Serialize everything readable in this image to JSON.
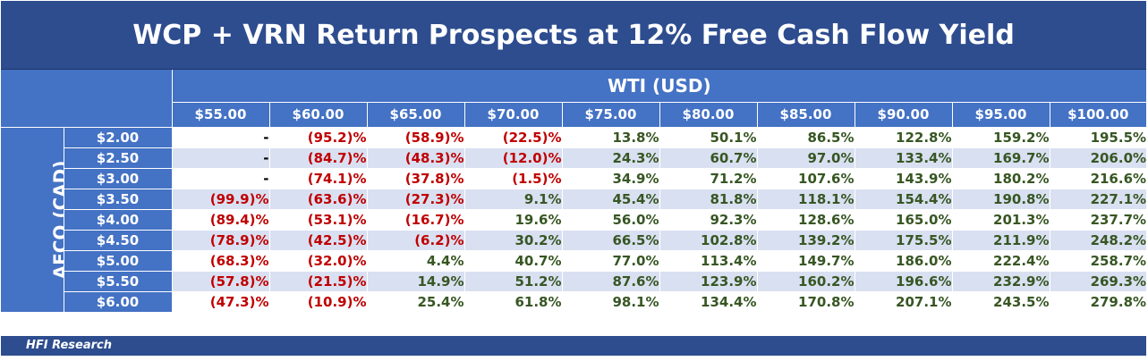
{
  "title": "WCP + VRN Return Prospects at 12% Free Cash Flow Yield",
  "footer_text": "HFI Research",
  "colors": {
    "header_bg": "#4472c4",
    "title_bg": "#2e4d8f",
    "negative": "#c00000",
    "positive": "#375623",
    "band": "#d9e0f1"
  },
  "chart_data": {
    "type": "table",
    "title": "WCP + VRN Return Prospects at 12% Free Cash Flow Yield",
    "col_axis_label": "WTI (USD)",
    "row_axis_label": "AECO (CAD)",
    "columns": [
      "$55.00",
      "$60.00",
      "$65.00",
      "$70.00",
      "$75.00",
      "$80.00",
      "$85.00",
      "$90.00",
      "$95.00",
      "$100.00"
    ],
    "rows": [
      {
        "label": "$2.00",
        "cells": [
          "-",
          "(95.2)%",
          "(58.9)%",
          "(22.5)%",
          "13.8%",
          "50.1%",
          "86.5%",
          "122.8%",
          "159.2%",
          "195.5%"
        ]
      },
      {
        "label": "$2.50",
        "cells": [
          "-",
          "(84.7)%",
          "(48.3)%",
          "(12.0)%",
          "24.3%",
          "60.7%",
          "97.0%",
          "133.4%",
          "169.7%",
          "206.0%"
        ]
      },
      {
        "label": "$3.00",
        "cells": [
          "-",
          "(74.1)%",
          "(37.8)%",
          "(1.5)%",
          "34.9%",
          "71.2%",
          "107.6%",
          "143.9%",
          "180.2%",
          "216.6%"
        ]
      },
      {
        "label": "$3.50",
        "cells": [
          "(99.9)%",
          "(63.6)%",
          "(27.3)%",
          "9.1%",
          "45.4%",
          "81.8%",
          "118.1%",
          "154.4%",
          "190.8%",
          "227.1%"
        ]
      },
      {
        "label": "$4.00",
        "cells": [
          "(89.4)%",
          "(53.1)%",
          "(16.7)%",
          "19.6%",
          "56.0%",
          "92.3%",
          "128.6%",
          "165.0%",
          "201.3%",
          "237.7%"
        ]
      },
      {
        "label": "$4.50",
        "cells": [
          "(78.9)%",
          "(42.5)%",
          "(6.2)%",
          "30.2%",
          "66.5%",
          "102.8%",
          "139.2%",
          "175.5%",
          "211.9%",
          "248.2%"
        ]
      },
      {
        "label": "$5.00",
        "cells": [
          "(68.3)%",
          "(32.0)%",
          "4.4%",
          "40.7%",
          "77.0%",
          "113.4%",
          "149.7%",
          "186.0%",
          "222.4%",
          "258.7%"
        ]
      },
      {
        "label": "$5.50",
        "cells": [
          "(57.8)%",
          "(21.5)%",
          "14.9%",
          "51.2%",
          "87.6%",
          "123.9%",
          "160.2%",
          "196.6%",
          "232.9%",
          "269.3%"
        ]
      },
      {
        "label": "$6.00",
        "cells": [
          "(47.3)%",
          "(10.9)%",
          "25.4%",
          "61.8%",
          "98.1%",
          "134.4%",
          "170.8%",
          "207.1%",
          "243.5%",
          "279.8%"
        ]
      }
    ]
  }
}
